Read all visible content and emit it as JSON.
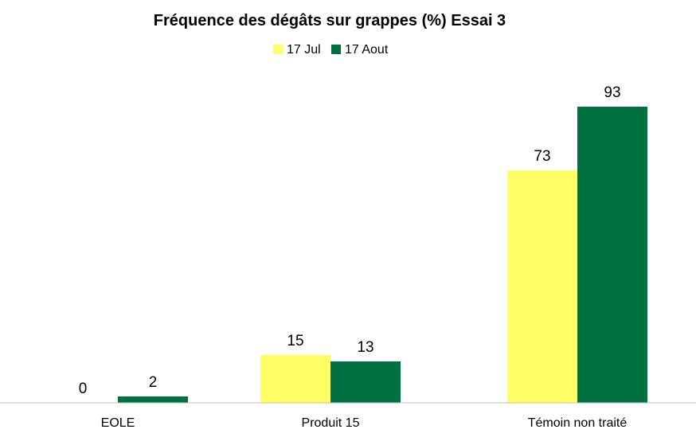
{
  "chart_data": {
    "type": "bar",
    "title": "Fréquence des dégâts sur grappes (%) Essai 3",
    "xlabel": "",
    "ylabel": "",
    "ylim": [
      0,
      100
    ],
    "grid": false,
    "legend_position": "top-center",
    "categories": [
      "EOLE",
      "Produit 15",
      "Témoin non traité"
    ],
    "series": [
      {
        "name": "17 Jul",
        "color": "#ffff66",
        "values": [
          0,
          15,
          73
        ]
      },
      {
        "name": "17 Aout",
        "color": "#007040",
        "values": [
          2,
          13,
          93
        ]
      }
    ]
  }
}
